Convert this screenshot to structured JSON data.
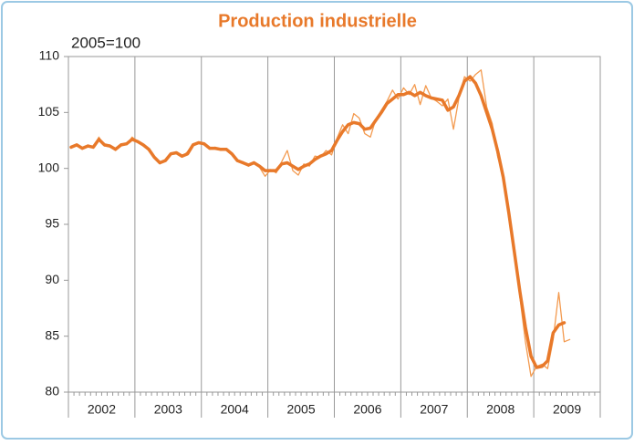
{
  "chart_data": {
    "type": "line",
    "title": "Production industrielle",
    "y_label": "2005=100",
    "categories": [
      "2002",
      "2003",
      "2004",
      "2005",
      "2006",
      "2007",
      "2008",
      "2009"
    ],
    "series": [
      {
        "color": "#f39a4f",
        "width": 1.3,
        "values": [
          [
            101.8,
            102.2,
            101.7,
            102.1,
            101.8,
            102.8,
            102.0,
            102.1,
            101.6,
            102.2,
            102.1,
            102.8
          ],
          [
            102.4,
            102.0,
            101.7,
            100.9,
            100.4,
            100.8,
            101.4,
            101.3,
            101.0,
            101.5,
            102.2,
            102.3
          ],
          [
            102.1,
            101.7,
            101.9,
            101.6,
            101.8,
            101.2,
            100.6,
            100.6,
            100.2,
            100.6,
            100.1,
            99.3
          ],
          [
            99.9,
            99.6,
            100.6,
            101.6,
            99.8,
            99.4,
            100.4,
            100.2,
            101.1,
            101.0,
            101.6,
            101.2
          ],
          [
            102.7,
            103.9,
            103.1,
            104.9,
            104.5,
            103.1,
            102.8,
            104.4,
            105.2,
            106.0,
            107.0,
            106.2
          ],
          [
            107.2,
            106.6,
            107.5,
            105.7,
            107.4,
            106.3,
            106.0,
            105.6,
            106.2,
            103.5,
            106.3,
            108.2
          ],
          [
            107.8,
            108.4,
            108.8,
            105.5,
            104.0,
            101.0,
            99.5,
            95.5,
            93.0,
            88.5,
            84.5,
            81.4
          ],
          [
            82.3,
            82.5,
            82.1,
            84.7,
            88.9,
            84.5,
            84.7
          ]
        ]
      },
      {
        "color": "#e8792a",
        "width": 3.5,
        "values": [
          [
            101.9,
            102.1,
            101.8,
            102.0,
            101.9,
            102.6,
            102.1,
            102.0,
            101.7,
            102.1,
            102.2,
            102.6
          ],
          [
            102.4,
            102.1,
            101.7,
            101.0,
            100.5,
            100.7,
            101.3,
            101.4,
            101.1,
            101.3,
            102.1,
            102.3
          ],
          [
            102.2,
            101.8,
            101.8,
            101.7,
            101.7,
            101.3,
            100.7,
            100.5,
            100.3,
            100.5,
            100.2,
            99.8
          ],
          [
            99.8,
            99.8,
            100.4,
            100.5,
            100.2,
            99.9,
            100.2,
            100.4,
            100.8,
            101.1,
            101.3,
            101.6
          ],
          [
            102.5,
            103.3,
            103.9,
            104.1,
            104.0,
            103.5,
            103.6,
            104.3,
            105.0,
            105.8,
            106.2,
            106.6
          ],
          [
            106.6,
            106.8,
            106.5,
            106.8,
            106.5,
            106.3,
            106.2,
            106.1,
            105.2,
            105.5,
            106.5,
            107.8
          ],
          [
            108.2,
            107.6,
            106.5,
            105.0,
            103.5,
            101.5,
            99.2,
            96.0,
            92.5,
            89.0,
            85.8,
            83.2
          ],
          [
            82.2,
            82.3,
            82.8,
            85.3,
            86.0,
            86.2
          ]
        ]
      }
    ],
    "ylim": [
      80,
      110
    ],
    "yticks": [
      80,
      85,
      90,
      95,
      100,
      105,
      110
    ],
    "title_color": "#e8792a"
  }
}
